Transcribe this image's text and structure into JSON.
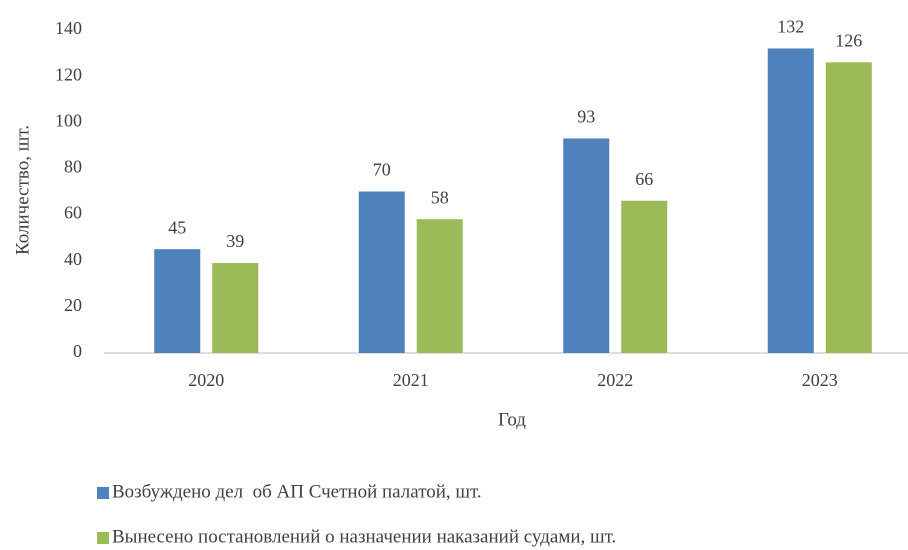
{
  "chart_data": {
    "type": "bar",
    "categories": [
      "2020",
      "2021",
      "2022",
      "2023"
    ],
    "series": [
      {
        "name": "Возбуждено дел  об АП Счетной палатой, шт.",
        "color": "#4f81bd",
        "values": [
          45,
          70,
          93,
          132
        ]
      },
      {
        "name": "Вынесено постановлений о назначении наказаний судами, шт.",
        "color": "#9bbb59",
        "values": [
          39,
          58,
          66,
          126
        ]
      }
    ],
    "x_label": "Год",
    "y_label": "Количество, шт.",
    "ylim": [
      0,
      140
    ],
    "yticks": [
      0,
      20,
      40,
      60,
      80,
      100,
      120,
      140
    ],
    "grid": false,
    "legend": "bottom"
  }
}
